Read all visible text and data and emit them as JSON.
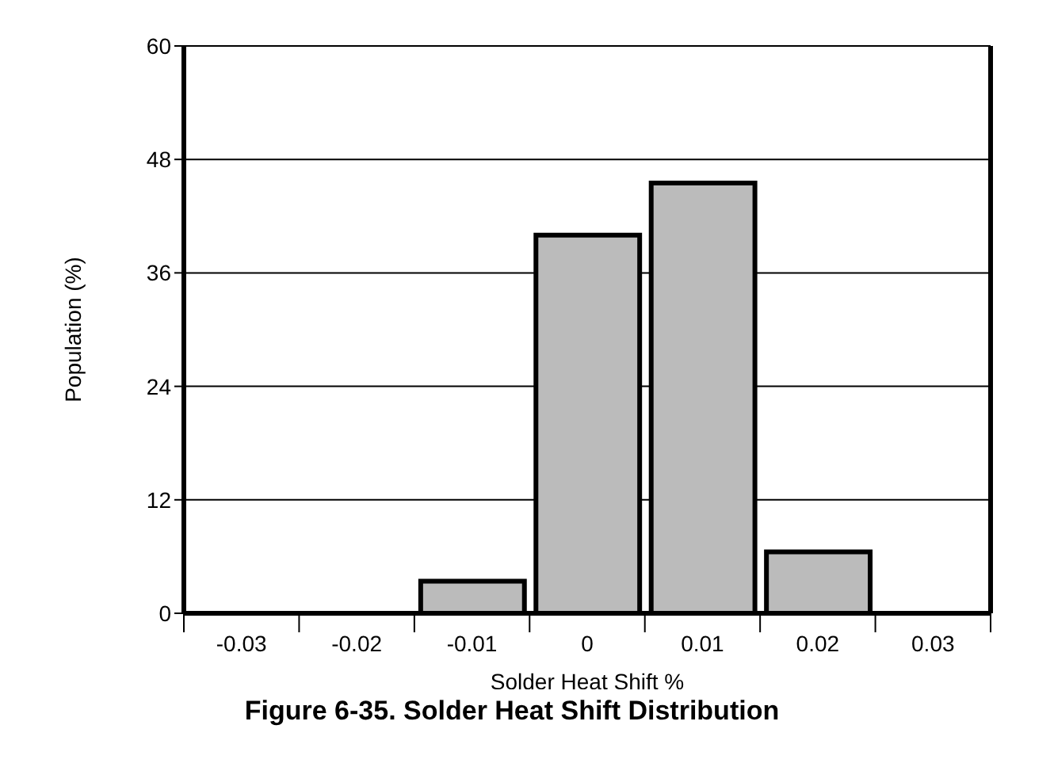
{
  "chart_data": {
    "type": "histogram",
    "title": "Figure 6-35. Solder Heat Shift Distribution",
    "xlabel": "Solder Heat Shift %",
    "ylabel": "Population (%)",
    "bins": [
      -0.035,
      -0.025,
      -0.015,
      -0.005,
      0.005,
      0.015,
      0.025,
      0.035
    ],
    "values": [
      0,
      0,
      3.4,
      40,
      45.5,
      6.5,
      0
    ],
    "color": "#bbbbbb",
    "xlim": [
      -0.035,
      0.035
    ],
    "xticks": [
      {
        "value": -0.035,
        "label": null
      },
      {
        "value": -0.03,
        "label": "-0.03"
      },
      {
        "value": -0.025,
        "label": null
      },
      {
        "value": -0.02,
        "label": "-0.02"
      },
      {
        "value": -0.015,
        "label": null
      },
      {
        "value": -0.01,
        "label": "-0.01"
      },
      {
        "value": -0.005,
        "label": null
      },
      {
        "value": 0,
        "label": "0"
      },
      {
        "value": 0.005,
        "label": null
      },
      {
        "value": 0.01,
        "label": "0.01"
      },
      {
        "value": 0.015,
        "label": null
      },
      {
        "value": 0.02,
        "label": "0.02"
      },
      {
        "value": 0.025,
        "label": null
      },
      {
        "value": 0.03,
        "label": "0.03"
      },
      {
        "value": 0.035,
        "label": null
      }
    ],
    "ylim": [
      0,
      60
    ],
    "yticks": [
      0,
      12,
      24,
      36,
      48,
      60
    ],
    "grid": "y"
  }
}
